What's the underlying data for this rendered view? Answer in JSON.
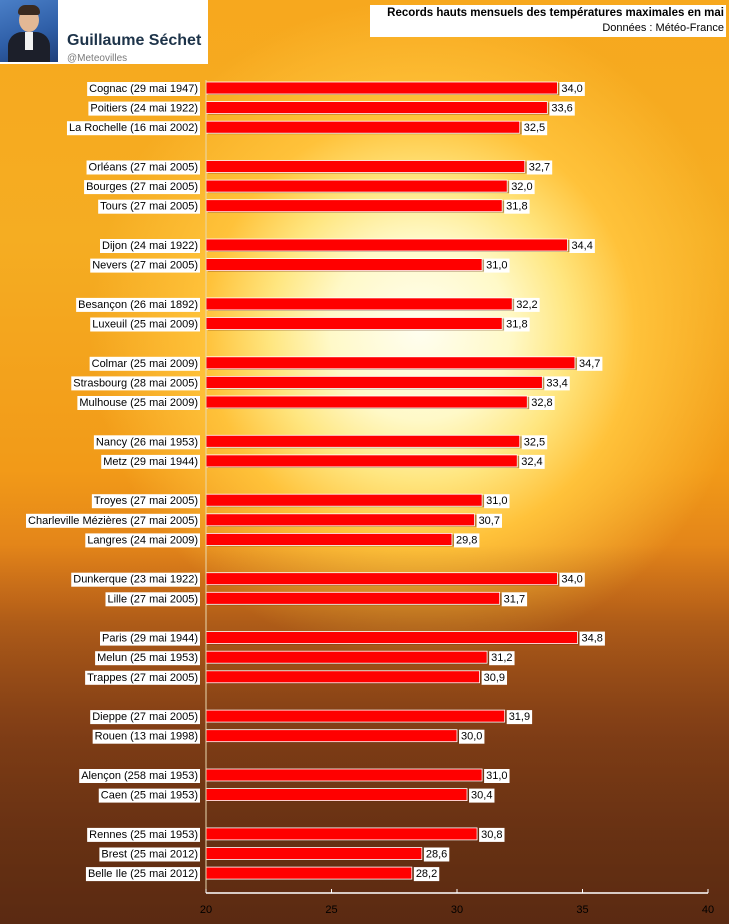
{
  "profile": {
    "name": "Guillaume Séchet",
    "handle": "@Meteovilles"
  },
  "chart_data": {
    "type": "bar",
    "orientation": "horizontal",
    "title": "Records hauts mensuels des températures maximales en mai",
    "subtitle": "Données : Météo-France",
    "xlim": [
      20,
      40
    ],
    "xticks": [
      20,
      25,
      30,
      35,
      40
    ],
    "bar_color": "#ff0000",
    "categories": [
      "Cognac (29 mai 1947)",
      "Poitiers (24 mai 1922)",
      "La Rochelle (16 mai 2002)",
      "Orléans (27 mai 2005)",
      "Bourges (27 mai 2005)",
      "Tours (27 mai 2005)",
      "Dijon (24 mai 1922)",
      "Nevers (27 mai 2005)",
      "Besançon (26 mai 1892)",
      "Luxeuil (25 mai 2009)",
      "Colmar (25 mai 2009)",
      "Strasbourg (28 mai 2005)",
      "Mulhouse (25 mai 2009)",
      "Nancy (26 mai 1953)",
      "Metz (29 mai 1944)",
      "Troyes (27 mai 2005)",
      "Charleville Mézières (27 mai 2005)",
      "Langres (24 mai 2009)",
      "Dunkerque (23 mai 1922)",
      "Lille (27 mai 2005)",
      "Paris (29 mai 1944)",
      "Melun (25 mai 1953)",
      "Trappes (27 mai 2005)",
      "Dieppe (27 mai 2005)",
      "Rouen (13 mai 1998)",
      "Alençon (258 mai 1953)",
      "Caen (25 mai 1953)",
      "Rennes (25 mai 1953)",
      "Brest (25 mai 2012)",
      "Belle Ile (25 mai 2012)"
    ],
    "values": [
      34.0,
      33.6,
      32.5,
      32.7,
      32.0,
      31.8,
      34.4,
      31.0,
      32.2,
      31.8,
      34.7,
      33.4,
      32.8,
      32.5,
      32.4,
      31.0,
      30.7,
      29.8,
      34.0,
      31.7,
      34.8,
      31.2,
      30.9,
      31.9,
      30.0,
      31.0,
      30.4,
      30.8,
      28.6,
      28.2
    ],
    "value_labels": [
      "34,0",
      "33,6",
      "32,5",
      "32,7",
      "32,0",
      "31,8",
      "34,4",
      "31,0",
      "32,2",
      "31,8",
      "34,7",
      "33,4",
      "32,8",
      "32,5",
      "32,4",
      "31,0",
      "30,7",
      "29,8",
      "34,0",
      "31,7",
      "34,8",
      "31,2",
      "30,9",
      "31,9",
      "30,0",
      "31,0",
      "30,4",
      "30,8",
      "28,6",
      "28,2"
    ],
    "tick_labels": [
      "20",
      "25",
      "30",
      "35",
      "40"
    ]
  }
}
